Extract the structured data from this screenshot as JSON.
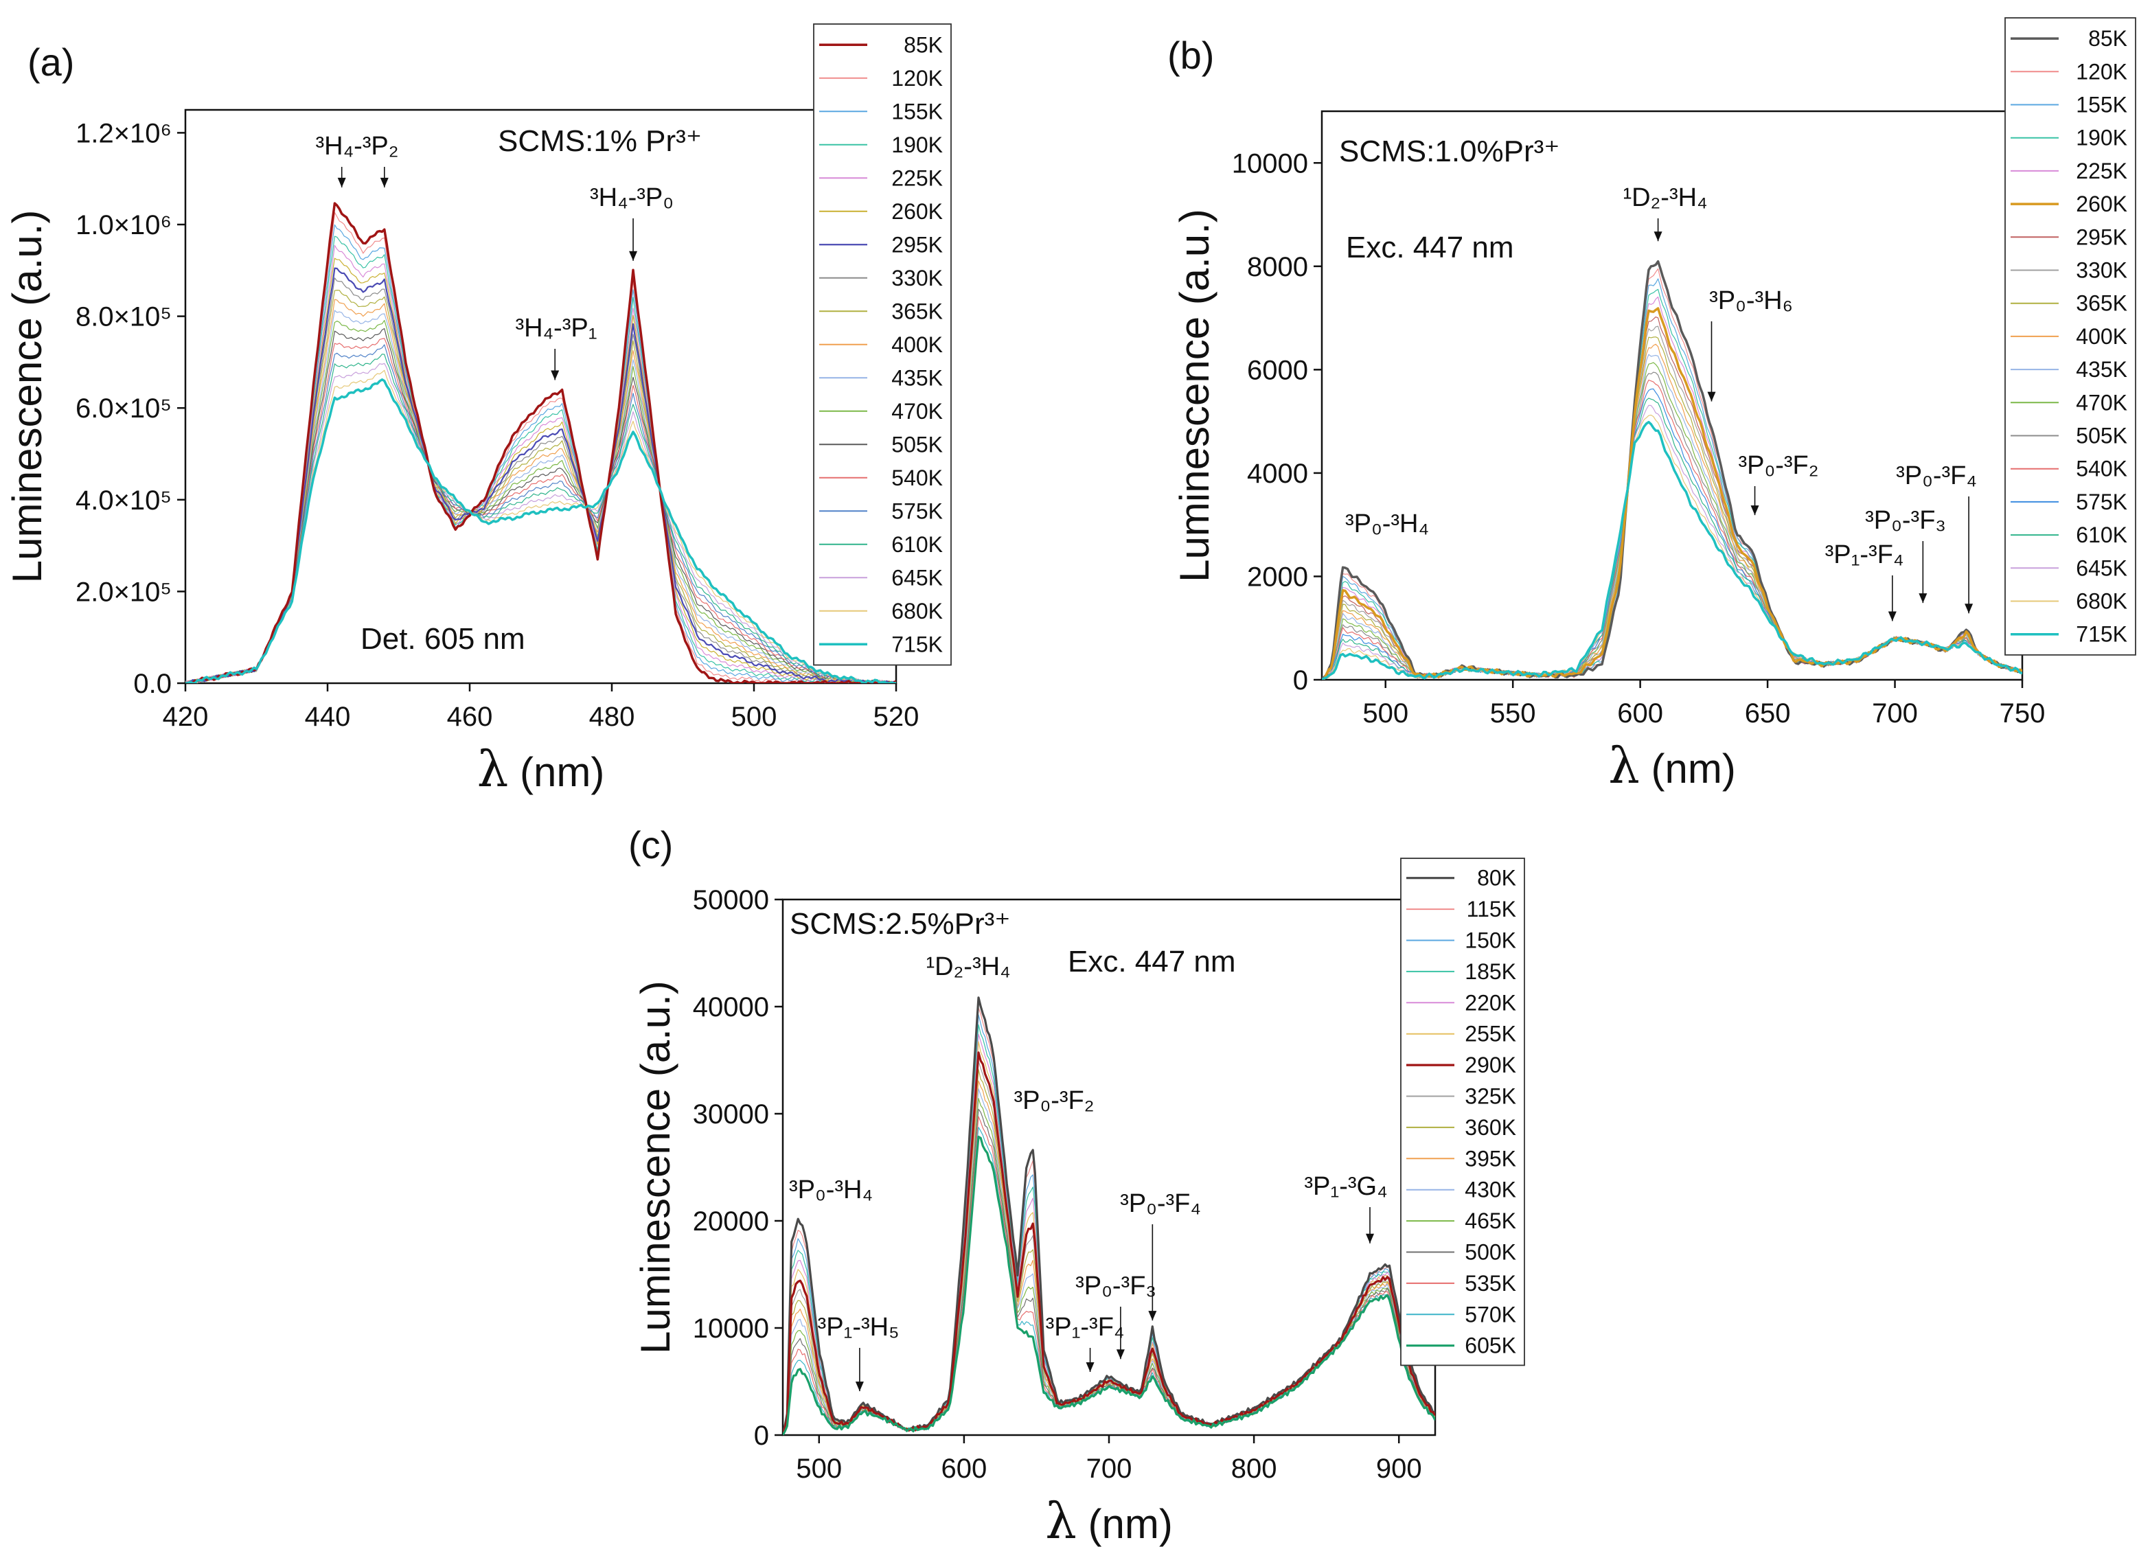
{
  "chart_data": [
    {
      "id": "a",
      "type": "line",
      "panel_label": "(a)",
      "xlabel": "λ (nm)",
      "ylabel": "Luminescence (a.u.)",
      "xlim": [
        420,
        520
      ],
      "ylim": [
        0,
        1250000
      ],
      "xticks": [
        420,
        440,
        460,
        480,
        500,
        520
      ],
      "yticks": [
        {
          "value": 0,
          "label": "0.0"
        },
        {
          "value": 200000,
          "label": "2.0×10⁵"
        },
        {
          "value": 400000,
          "label": "4.0×10⁵"
        },
        {
          "value": 600000,
          "label": "6.0×10⁵"
        },
        {
          "value": 800000,
          "label": "8.0×10⁵"
        },
        {
          "value": 1000000,
          "label": "1.0×10⁶"
        },
        {
          "value": 1200000,
          "label": "1.2×10⁶"
        }
      ],
      "sample_text": "SCMS:1% Pr³⁺",
      "info_text": "Det.  605 nm",
      "annotations": [
        {
          "text": "³H₄-³P₂",
          "x": 442,
          "y": 1060000,
          "x2": 448
        },
        {
          "text": "³H₄-³P₁",
          "x": 472,
          "y": 640000
        },
        {
          "text": "³H₄-³P₀",
          "x": 483,
          "y": 900000
        }
      ],
      "series_names": [
        "85K",
        "120K",
        "155K",
        "190K",
        "225K",
        "260K",
        "295K",
        "330K",
        "365K",
        "400K",
        "435K",
        "470K",
        "505K",
        "540K",
        "575K",
        "610K",
        "645K",
        "680K",
        "715K"
      ],
      "series_colors": [
        "#a01515",
        "#f08c8c",
        "#5aa7e0",
        "#39c2a5",
        "#d88ad8",
        "#c9b030",
        "#4a4ab3",
        "#8c8c8c",
        "#b0b040",
        "#f0a050",
        "#96b4e6",
        "#7cb848",
        "#5a5a5a",
        "#e66e6e",
        "#5082c8",
        "#30b48c",
        "#c8a0dc",
        "#e6c878",
        "#1fc0c0"
      ],
      "series_widths": [
        3.5,
        1.2,
        1.2,
        1.2,
        1.2,
        1.2,
        2.2,
        1.2,
        1.2,
        1.2,
        1.2,
        1.2,
        1.2,
        1.2,
        1.2,
        1.2,
        1.2,
        1.2,
        3.5
      ],
      "anchor_x": [
        420,
        430,
        435,
        438,
        441,
        445,
        448,
        451,
        455,
        458,
        462,
        466,
        470,
        473,
        476,
        478,
        481,
        483,
        486,
        489,
        492,
        495,
        500,
        505,
        510,
        515,
        520
      ],
      "anchor_cold": [
        0,
        30000,
        200000,
        650000,
        1050000,
        960000,
        990000,
        700000,
        420000,
        335000,
        400000,
        540000,
        610000,
        640000,
        420000,
        270000,
        600000,
        900000,
        520000,
        150000,
        30000,
        5000,
        0,
        0,
        0,
        0,
        0
      ],
      "anchor_hot": [
        0,
        30000,
        180000,
        450000,
        620000,
        640000,
        660000,
        570000,
        450000,
        400000,
        350000,
        360000,
        375000,
        380000,
        385000,
        390000,
        470000,
        550000,
        450000,
        340000,
        250000,
        200000,
        130000,
        60000,
        20000,
        5000,
        0
      ]
    },
    {
      "id": "b",
      "type": "line",
      "panel_label": "(b)",
      "xlabel": "λ (nm)",
      "ylabel": "Luminescence (a.u.)",
      "xlim": [
        475,
        750
      ],
      "ylim": [
        0,
        11000
      ],
      "xticks": [
        500,
        550,
        600,
        650,
        700,
        750
      ],
      "yticks": [
        {
          "value": 0,
          "label": "0"
        },
        {
          "value": 2000,
          "label": "2000"
        },
        {
          "value": 4000,
          "label": "4000"
        },
        {
          "value": 6000,
          "label": "6000"
        },
        {
          "value": 8000,
          "label": "8000"
        },
        {
          "value": 10000,
          "label": "10000"
        }
      ],
      "sample_text": "SCMS:1.0%Pr³⁺",
      "info_text": "Exc. 447  nm",
      "annotations": [
        {
          "text": "¹D₂-³H₄",
          "x": 607,
          "y": 8300
        },
        {
          "text": "³P₀-³H₆",
          "x": 628,
          "y": 5200
        },
        {
          "text": "³P₀-³F₂",
          "x": 645,
          "y": 3000
        },
        {
          "text": "³P₀-³H₄",
          "x": 490,
          "y": 0,
          "no_arrow": true
        },
        {
          "text": "³P₁-³F₄",
          "x": 699,
          "y": 950
        },
        {
          "text": "³P₀-³F₃",
          "x": 711,
          "y": 1300
        },
        {
          "text": "³P₀-³F₄",
          "x": 729,
          "y": 1100
        }
      ],
      "series_names": [
        "85K",
        "120K",
        "155K",
        "190K",
        "225K",
        "260K",
        "295K",
        "330K",
        "365K",
        "400K",
        "435K",
        "470K",
        "505K",
        "540K",
        "575K",
        "610K",
        "645K",
        "680K",
        "715K"
      ],
      "series_colors": [
        "#5a5a5a",
        "#f08c8c",
        "#5aa7e0",
        "#39c2a5",
        "#d88ad8",
        "#d89a20",
        "#c06060",
        "#a0a0a0",
        "#b0b040",
        "#f0a050",
        "#96b4e6",
        "#7cb848",
        "#8c8c8c",
        "#e66e6e",
        "#3c8ce0",
        "#30b48c",
        "#c8a0dc",
        "#e6c878",
        "#1fc0c0"
      ],
      "series_widths": [
        3.5,
        1.2,
        1.2,
        1.2,
        1.2,
        3.5,
        1.2,
        1.2,
        1.2,
        1.2,
        1.2,
        1.2,
        1.2,
        1.2,
        1.2,
        1.2,
        1.2,
        1.2,
        3.5
      ],
      "anchor_x": [
        475,
        479,
        483,
        490,
        497,
        505,
        512,
        520,
        530,
        545,
        560,
        575,
        585,
        592,
        598,
        603,
        607,
        612,
        620,
        630,
        638,
        644,
        650,
        660,
        672,
        685,
        700,
        712,
        720,
        728,
        733,
        740,
        750
      ],
      "anchor_cold": [
        0,
        300,
        2200,
        1900,
        1600,
        800,
        100,
        80,
        250,
        150,
        80,
        80,
        300,
        1800,
        5500,
        7900,
        8100,
        7300,
        6300,
        4500,
        2800,
        2500,
        1500,
        350,
        300,
        350,
        800,
        700,
        550,
        1000,
        500,
        300,
        150
      ],
      "anchor_hot": [
        0,
        100,
        500,
        450,
        350,
        150,
        60,
        80,
        200,
        150,
        100,
        200,
        1000,
        2800,
        4600,
        5000,
        4800,
        4200,
        3400,
        2600,
        2000,
        1700,
        1200,
        500,
        300,
        400,
        800,
        700,
        600,
        700,
        500,
        300,
        150
      ]
    },
    {
      "id": "c",
      "type": "line",
      "panel_label": "(c)",
      "xlabel": "λ (nm)",
      "ylabel": "Luminescence (a.u.)",
      "xlim": [
        475,
        925
      ],
      "ylim": [
        0,
        50000
      ],
      "xticks": [
        500,
        600,
        700,
        800,
        900
      ],
      "yticks": [
        {
          "value": 0,
          "label": "0"
        },
        {
          "value": 10000,
          "label": "10000"
        },
        {
          "value": 20000,
          "label": "20000"
        },
        {
          "value": 30000,
          "label": "30000"
        },
        {
          "value": 40000,
          "label": "40000"
        },
        {
          "value": 50000,
          "label": "50000"
        }
      ],
      "sample_text": "SCMS:2.5%Pr³⁺",
      "info_text": "Exc. 447 nm",
      "annotations": [
        {
          "text": "¹D₂-³H₄",
          "x": 610,
          "y": 0,
          "no_arrow": true
        },
        {
          "text": "³P₀-³F₂",
          "x": 648,
          "y": 0,
          "no_arrow": true
        },
        {
          "text": "³P₀-³H₄",
          "x": 486,
          "y": 0,
          "no_arrow": true
        },
        {
          "text": "³P₁-³H₅",
          "x": 528,
          "y": 3200
        },
        {
          "text": "³P₀-³F₄",
          "x": 730,
          "y": 9800
        },
        {
          "text": "³P₀-³F₃",
          "x": 708,
          "y": 6200
        },
        {
          "text": "³P₁-³F₄",
          "x": 687,
          "y": 5000
        },
        {
          "text": "³P₁-³G₄",
          "x": 880,
          "y": 17000
        }
      ],
      "series_names": [
        "80K",
        "115K",
        "150K",
        "185K",
        "220K",
        "255K",
        "290K",
        "325K",
        "360K",
        "395K",
        "430K",
        "465K",
        "500K",
        "535K",
        "570K",
        "605K"
      ],
      "series_colors": [
        "#4a4a4a",
        "#f08c8c",
        "#5aa7e0",
        "#39c2a5",
        "#d88ad8",
        "#e6c060",
        "#a01515",
        "#a0a0a0",
        "#b0b040",
        "#f0a050",
        "#96b4e6",
        "#7cb848",
        "#707070",
        "#e66e6e",
        "#3cb4c8",
        "#1aa06a"
      ],
      "series_widths": [
        3.2,
        1.2,
        1.2,
        1.2,
        1.2,
        1.2,
        3.2,
        1.2,
        1.2,
        1.2,
        1.2,
        1.2,
        1.2,
        1.2,
        1.2,
        3.2
      ],
      "anchor_x": [
        475,
        478,
        481,
        486,
        491,
        500,
        510,
        520,
        530,
        545,
        560,
        575,
        590,
        600,
        610,
        620,
        630,
        637,
        643,
        648,
        655,
        665,
        680,
        700,
        712,
        722,
        730,
        738,
        750,
        770,
        800,
        830,
        860,
        880,
        893,
        905,
        915,
        925
      ],
      "anchor_cold": [
        0,
        2000,
        18000,
        20300,
        18500,
        8000,
        1500,
        1200,
        3000,
        1800,
        500,
        900,
        3500,
        20000,
        40800,
        36000,
        23000,
        15000,
        25000,
        27000,
        8000,
        3000,
        3500,
        5500,
        4500,
        4000,
        10000,
        5000,
        2000,
        1000,
        2500,
        5000,
        9000,
        15000,
        16000,
        8000,
        4000,
        2000
      ],
      "anchor_hot": [
        0,
        800,
        5000,
        6200,
        5500,
        2500,
        600,
        800,
        2200,
        1500,
        500,
        600,
        2500,
        12000,
        28000,
        25000,
        17000,
        10000,
        9500,
        9000,
        4000,
        2500,
        3000,
        4500,
        4000,
        3500,
        5500,
        3500,
        1500,
        800,
        2000,
        4500,
        8500,
        12500,
        13000,
        6000,
        3000,
        1500
      ]
    }
  ]
}
